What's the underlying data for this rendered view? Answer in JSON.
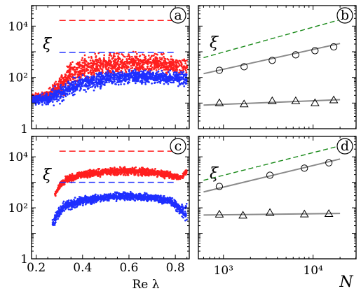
{
  "colors": {
    "red": "#ff1f1f",
    "blue": "#1f2fff",
    "green": "#1a8a1a",
    "gray": "#8a8a8a"
  },
  "chart_data": [
    {
      "id": "a",
      "type": "scatter",
      "panel_label": "a",
      "ylabel": "ξ",
      "xlabel": "",
      "xlim": [
        0.18,
        0.86
      ],
      "ylim_log10": [
        0,
        4.8
      ],
      "yscale": "log",
      "yticks": [
        {
          "value_log10": 0,
          "label": "1"
        },
        {
          "value_log10": 2,
          "label": "10²"
        },
        {
          "value_log10": 4,
          "label": "10⁴"
        }
      ],
      "xticks": [
        0.2,
        0.4,
        0.6,
        0.8
      ],
      "hlines": [
        {
          "series": "red",
          "y_log10": 4.22,
          "x": [
            0.3,
            0.8
          ]
        },
        {
          "series": "blue",
          "y_log10": 2.98,
          "x": [
            0.3,
            0.8
          ]
        }
      ],
      "scatter_envelope": [
        {
          "series": "red",
          "x": [
            0.18,
            0.25,
            0.3,
            0.35,
            0.4,
            0.5,
            0.6,
            0.7,
            0.8,
            0.85
          ],
          "lower_log10": [
            1.0,
            1.0,
            1.1,
            1.45,
            1.75,
            1.95,
            2.05,
            2.05,
            2.0,
            1.95
          ],
          "upper_log10": [
            1.4,
            1.6,
            2.2,
            2.8,
            2.95,
            3.05,
            3.1,
            3.1,
            2.9,
            2.85
          ]
        },
        {
          "series": "blue",
          "x": [
            0.18,
            0.25,
            0.3,
            0.35,
            0.4,
            0.5,
            0.6,
            0.7,
            0.8,
            0.85
          ],
          "lower_log10": [
            0.9,
            0.85,
            0.9,
            1.1,
            1.35,
            1.6,
            1.7,
            1.7,
            1.65,
            1.6
          ],
          "upper_log10": [
            1.35,
            1.5,
            1.8,
            2.05,
            2.2,
            2.3,
            2.35,
            2.35,
            2.3,
            2.3
          ]
        }
      ]
    },
    {
      "id": "b",
      "type": "scatter",
      "panel_label": "b",
      "ylabel": "ξ",
      "xlabel": "",
      "xscale": "log",
      "yscale": "log",
      "xlim_log10": [
        2.72,
        4.48
      ],
      "ylim_log10": [
        0,
        4.8
      ],
      "series": [
        {
          "name": "",
          "marker": "circle",
          "x": [
            900,
            1700,
            3500,
            6400,
            10500,
            17000
          ],
          "y": [
            190,
            260,
            460,
            760,
            1100,
            1550
          ],
          "fit_x": [
            600,
            20000
          ],
          "fit_y": [
            140,
            2100
          ]
        },
        {
          "name": "",
          "marker": "triangle",
          "x": [
            900,
            1700,
            3500,
            6400,
            10500,
            17000
          ],
          "y": [
            10,
            9,
            12,
            12,
            10,
            13
          ],
          "fit_x": [
            600,
            20000
          ],
          "fit_y": [
            8.3,
            13.5
          ]
        },
        {
          "name": "",
          "marker": "none",
          "style": "dashed",
          "color": "green",
          "x": [
            600,
            20000
          ],
          "y": [
            590,
            17800
          ]
        }
      ]
    },
    {
      "id": "c",
      "type": "scatter",
      "panel_label": "c",
      "ylabel": "ξ",
      "xlabel": "Re λ",
      "xlim": [
        0.18,
        0.86
      ],
      "ylim_log10": [
        0,
        4.8
      ],
      "yscale": "log",
      "yticks": [
        {
          "value_log10": 0,
          "label": "1"
        },
        {
          "value_log10": 2,
          "label": "10²"
        },
        {
          "value_log10": 4,
          "label": "10⁴"
        }
      ],
      "xticks": [
        0.2,
        0.4,
        0.6,
        0.8
      ],
      "hlines": [
        {
          "series": "red",
          "y_log10": 4.22,
          "x": [
            0.3,
            0.8
          ]
        },
        {
          "series": "blue",
          "y_log10": 3.0,
          "x": [
            0.3,
            0.8
          ]
        }
      ],
      "scatter_envelope": [
        {
          "series": "red",
          "x": [
            0.28,
            0.3,
            0.33,
            0.4,
            0.5,
            0.6,
            0.7,
            0.78,
            0.82,
            0.85
          ],
          "lower_log10": [
            2.4,
            2.7,
            2.9,
            3.1,
            3.2,
            3.25,
            3.2,
            3.1,
            3.05,
            3.3
          ],
          "upper_log10": [
            2.6,
            3.0,
            3.3,
            3.5,
            3.62,
            3.65,
            3.6,
            3.45,
            3.3,
            3.55
          ]
        },
        {
          "series": "blue",
          "x": [
            0.27,
            0.29,
            0.32,
            0.4,
            0.5,
            0.6,
            0.7,
            0.78,
            0.82,
            0.85
          ],
          "lower_log10": [
            1.0,
            1.4,
            1.8,
            2.05,
            2.2,
            2.25,
            2.2,
            2.05,
            1.7,
            1.3
          ],
          "upper_log10": [
            1.6,
            2.1,
            2.3,
            2.5,
            2.62,
            2.65,
            2.6,
            2.45,
            2.2,
            2.3
          ]
        }
      ]
    },
    {
      "id": "d",
      "type": "scatter",
      "panel_label": "d",
      "ylabel": "ξ",
      "xlabel": "N",
      "xscale": "log",
      "yscale": "log",
      "xlim_log10": [
        2.72,
        4.48
      ],
      "xticks": [
        {
          "value_log10": 3,
          "label": "10³"
        },
        {
          "value_log10": 4,
          "label": "10⁴"
        }
      ],
      "ylim_log10": [
        0,
        4.8
      ],
      "series": [
        {
          "name": "",
          "marker": "circle",
          "x": [
            900,
            3300,
            8000,
            15000
          ],
          "y": [
            690,
            1900,
            3600,
            5800
          ],
          "fit_x": [
            600,
            20000
          ],
          "fit_y": [
            420,
            8200
          ]
        },
        {
          "name": "",
          "marker": "triangle",
          "x": [
            900,
            1650,
            3300,
            8000,
            15000
          ],
          "y": [
            55,
            50,
            64,
            56,
            58
          ],
          "fit_x": [
            600,
            20000
          ],
          "fit_y": [
            52,
            60
          ]
        },
        {
          "name": "",
          "marker": "none",
          "style": "dashed",
          "color": "green",
          "x": [
            600,
            20000
          ],
          "y": [
            1200,
            27000
          ]
        }
      ]
    }
  ]
}
